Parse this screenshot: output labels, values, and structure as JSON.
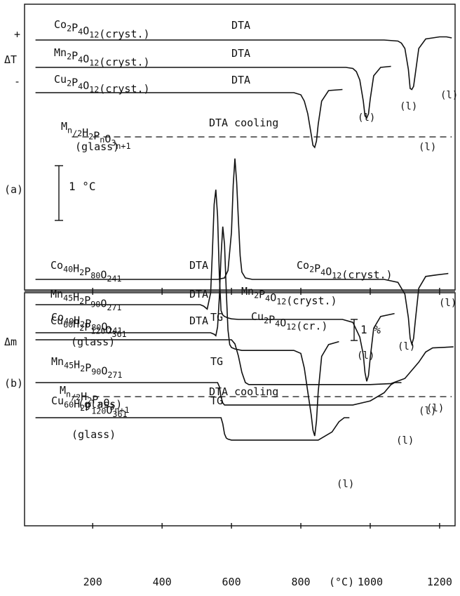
{
  "chart_data": {
    "type": "line",
    "x_unit": "(°C)",
    "xlim": [
      35,
      1240
    ],
    "x_ticks": [
      200,
      400,
      600,
      800,
      1000,
      1200
    ],
    "x_tick_labels": [
      "200",
      "400",
      "600",
      "800",
      "1000",
      "1200"
    ],
    "panel_a": {
      "label": "(a)",
      "axis_label": "ΔT",
      "sign_plus": "+",
      "sign_minus": "-",
      "scale_label": "1 °C",
      "crystal_curves": [
        {
          "name": "Co2P4O12(cryst.)",
          "method": "DTA",
          "peak_label": "(l)",
          "x": [
            35,
            1040,
            1080,
            1090,
            1100,
            1110,
            1115,
            1120,
            1125,
            1130,
            1140,
            1160,
            1180,
            1200,
            1220,
            1235
          ],
          "y": [
            0,
            0,
            -0.05,
            -0.15,
            -0.4,
            -1.4,
            -2.3,
            -2.35,
            -2.2,
            -1.6,
            -0.4,
            0.05,
            0.1,
            0.15,
            0.15,
            0.1
          ]
        },
        {
          "name": "Mn2P4O12(cryst.)",
          "method": "DTA",
          "peak_label": "(l)",
          "x": [
            35,
            930,
            950,
            960,
            970,
            980,
            985,
            990,
            995,
            1000,
            1010,
            1030,
            1060
          ],
          "y": [
            0,
            0,
            -0.05,
            -0.2,
            -0.6,
            -1.6,
            -2.3,
            -2.4,
            -2.2,
            -1.5,
            -0.4,
            0.0,
            0.05
          ]
        },
        {
          "name": "Cu2P4O12(cryst.)",
          "method": "DTA",
          "peak_label": "(l)",
          "x": [
            35,
            780,
            800,
            810,
            820,
            830,
            835,
            840,
            845,
            850,
            860,
            880,
            920
          ],
          "y": [
            0,
            0,
            -0.1,
            -0.4,
            -1.0,
            -2.0,
            -2.5,
            -2.6,
            -2.3,
            -1.5,
            -0.4,
            0.1,
            0.15
          ]
        }
      ],
      "glass_curves": [
        {
          "name": "Co40H2P80O241",
          "method": "DTA",
          "product": "Co2P4O12(cryst.)",
          "peak_label": "(l)",
          "x": [
            35,
            560,
            580,
            590,
            600,
            605,
            610,
            615,
            620,
            625,
            630,
            640,
            660,
            700,
            1040,
            1080,
            1100,
            1110,
            1115,
            1120,
            1125,
            1130,
            1140,
            1160,
            1190,
            1225
          ],
          "y": [
            0,
            0,
            0.05,
            0.3,
            1.6,
            3.2,
            4.1,
            3.3,
            2.0,
            0.8,
            0.25,
            0.05,
            0,
            0,
            0,
            -0.1,
            -0.5,
            -1.3,
            -2.0,
            -2.2,
            -2.0,
            -1.4,
            -0.3,
            0.1,
            0.15,
            0.2
          ]
        },
        {
          "name": "Mn45H2P90O271",
          "method": "DTA",
          "product": "Mn2P4O12(cryst.)",
          "peak_label": "(l)",
          "x": [
            35,
            510,
            520,
            530,
            540,
            545,
            550,
            555,
            560,
            565,
            570,
            575,
            580,
            590,
            600,
            620,
            650,
            920,
            950,
            970,
            980,
            985,
            990,
            995,
            1000,
            1010,
            1030,
            1070
          ],
          "y": [
            0,
            0,
            -0.05,
            -0.15,
            0.4,
            1.8,
            3.4,
            3.9,
            3.0,
            1.0,
            -0.2,
            -0.35,
            -0.4,
            -0.45,
            -0.48,
            -0.5,
            -0.5,
            -0.5,
            -0.6,
            -1.1,
            -1.7,
            -2.3,
            -2.6,
            -2.4,
            -1.8,
            -0.8,
            -0.4,
            -0.3
          ]
        },
        {
          "name": "Cu60H2P120O361",
          "method": "DTA",
          "product": "Cu2P4O12(cr.)",
          "peak_label": "(l)",
          "x": [
            35,
            540,
            550,
            555,
            560,
            565,
            570,
            575,
            580,
            585,
            590,
            595,
            600,
            610,
            630,
            660,
            780,
            800,
            810,
            820,
            830,
            835,
            840,
            845,
            850,
            860,
            880,
            910
          ],
          "y": [
            0,
            0,
            -0.05,
            -0.1,
            0.2,
            1.2,
            2.6,
            3.6,
            3.0,
            1.4,
            0.1,
            -0.4,
            -0.5,
            -0.55,
            -0.6,
            -0.6,
            -0.6,
            -0.7,
            -1.2,
            -2.0,
            -2.8,
            -3.3,
            -3.5,
            -3.0,
            -2.0,
            -0.8,
            -0.4,
            -0.3
          ]
        }
      ],
      "glass_label": "(glass)",
      "cooling_curves": [
        {
          "name": "Mn/2H2PnO3n+1",
          "method": "DTA cooling",
          "sub_label": "(glass)",
          "peak_label": "(l)",
          "x": [
            140,
            1235
          ],
          "y": [
            0,
            0
          ]
        },
        {
          "name": "Mn/2H2PnO3n+1",
          "method": "DTA cooling",
          "sub_label": "(glass)",
          "peak_label": "(l)",
          "x": [
            140,
            1235
          ],
          "y": [
            0,
            0
          ]
        }
      ]
    },
    "panel_b": {
      "label": "(b)",
      "axis_label": "Δm",
      "scale_label": "1 %",
      "method": "TG",
      "curves": [
        {
          "name": "Co40H2P80O241",
          "method": "TG",
          "peak_label": "(l)",
          "x": [
            35,
            600,
            610,
            620,
            630,
            640,
            650,
            700,
            1000,
            1060,
            1100,
            1140,
            1160,
            1180,
            1240
          ],
          "y": [
            0,
            0,
            -0.2,
            -0.8,
            -1.6,
            -2.1,
            -2.2,
            -2.2,
            -2.2,
            -2.15,
            -1.9,
            -1.1,
            -0.6,
            -0.4,
            -0.35
          ]
        },
        {
          "name": "Mn45H2P90O271",
          "method": "TG",
          "peak_label": "(l)",
          "x": [
            35,
            560,
            565,
            570,
            575,
            580,
            600,
            950,
            1000,
            1040,
            1060,
            1070,
            1090
          ],
          "y": [
            0,
            0,
            -0.2,
            -0.7,
            -1.0,
            -1.1,
            -1.1,
            -1.1,
            -0.9,
            -0.5,
            -0.1,
            0.0,
            0.0
          ]
        },
        {
          "name": "Cu60H2P120O361",
          "method": "TG",
          "peak_label": "(l)",
          "x": [
            35,
            570,
            575,
            580,
            585,
            590,
            600,
            850,
            890,
            910,
            925,
            940
          ],
          "y": [
            0,
            0,
            -0.3,
            -0.8,
            -1.0,
            -1.05,
            -1.1,
            -1.1,
            -0.7,
            -0.2,
            0.0,
            0.0
          ]
        }
      ],
      "glass_label": "(glass)"
    }
  }
}
